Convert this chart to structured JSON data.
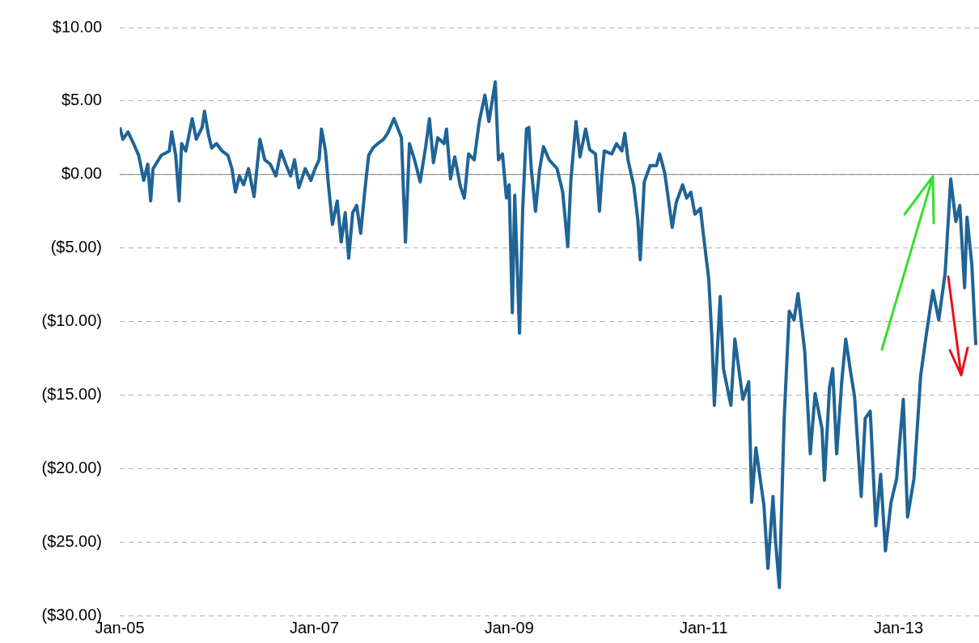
{
  "chart_data": {
    "type": "line",
    "color": "#1f6496",
    "marker": "none",
    "grid": "y",
    "xlim": [
      "2005-01-01",
      "2013-10-30"
    ],
    "xticks": [
      {
        "value": "2005-01-01",
        "label": "Jan-05"
      },
      {
        "value": "2007-01-01",
        "label": "Jan-07"
      },
      {
        "value": "2009-01-01",
        "label": "Jan-09"
      },
      {
        "value": "2011-01-01",
        "label": "Jan-11"
      },
      {
        "value": "2013-01-01",
        "label": "Jan-13"
      }
    ],
    "ylim": [
      -30,
      10
    ],
    "yticks": [
      {
        "value": -30,
        "label": "($30.00)"
      },
      {
        "value": -25,
        "label": "($25.00)"
      },
      {
        "value": -20,
        "label": "($20.00)"
      },
      {
        "value": -15,
        "label": "($15.00)"
      },
      {
        "value": -10,
        "label": "($10.00)"
      },
      {
        "value": -5,
        "label": "($5.00)"
      },
      {
        "value": 0,
        "label": "$0.00"
      },
      {
        "value": 5,
        "label": "$5.00"
      },
      {
        "value": 10,
        "label": "$10.00"
      }
    ],
    "ref_lines": [
      {
        "axis": "y",
        "value": 0,
        "color": "#808080"
      }
    ],
    "x": [
      "2005-01-01",
      "2005-01-13",
      "2005-02-01",
      "2005-02-22",
      "2005-03-13",
      "2005-04-01",
      "2005-04-16",
      "2005-04-27",
      "2005-05-06",
      "2005-06-06",
      "2005-07-06",
      "2005-07-15",
      "2005-07-30",
      "2005-08-12",
      "2005-08-21",
      "2005-09-06",
      "2005-09-30",
      "2005-10-15",
      "2005-11-06",
      "2005-11-15",
      "2005-11-30",
      "2005-12-12",
      "2005-12-30",
      "2006-01-20",
      "2006-02-11",
      "2006-02-26",
      "2006-03-11",
      "2006-03-26",
      "2006-04-11",
      "2006-04-29",
      "2006-05-20",
      "2006-06-11",
      "2006-06-29",
      "2006-07-20",
      "2006-08-10",
      "2006-08-29",
      "2006-09-16",
      "2006-10-04",
      "2006-10-19",
      "2006-11-04",
      "2006-11-28",
      "2006-12-19",
      "2007-01-04",
      "2007-01-19",
      "2007-01-28",
      "2007-02-12",
      "2007-02-23",
      "2007-03-10",
      "2007-03-28",
      "2007-04-12",
      "2007-04-27",
      "2007-05-10",
      "2007-05-25",
      "2007-06-09",
      "2007-06-24",
      "2007-07-09",
      "2007-07-24",
      "2007-08-09",
      "2007-08-27",
      "2007-09-18",
      "2007-10-03",
      "2007-10-27",
      "2007-11-24",
      "2007-12-09",
      "2007-12-24",
      "2008-01-12",
      "2008-02-02",
      "2008-02-23",
      "2008-03-08",
      "2008-03-23",
      "2008-04-08",
      "2008-05-02",
      "2008-05-11",
      "2008-05-26",
      "2008-06-11",
      "2008-07-02",
      "2008-07-17",
      "2008-08-02",
      "2008-08-23",
      "2008-09-11",
      "2008-10-02",
      "2008-10-17",
      "2008-11-10",
      "2008-11-22",
      "2008-12-07",
      "2008-12-22",
      "2009-01-01",
      "2009-01-13",
      "2009-01-22",
      "2009-02-09",
      "2009-02-21",
      "2009-03-07",
      "2009-03-16",
      "2009-03-25",
      "2009-04-10",
      "2009-04-25",
      "2009-05-10",
      "2009-05-31",
      "2009-06-30",
      "2009-07-21",
      "2009-08-09",
      "2009-08-21",
      "2009-09-09",
      "2009-09-24",
      "2009-10-15",
      "2009-10-30",
      "2009-11-21",
      "2009-12-06",
      "2009-12-15",
      "2009-12-24",
      "2010-01-21",
      "2010-02-08",
      "2010-02-28",
      "2010-03-11",
      "2010-03-23",
      "2010-04-14",
      "2010-04-29",
      "2010-05-08",
      "2010-05-23",
      "2010-06-14",
      "2010-07-08",
      "2010-07-20",
      "2010-08-08",
      "2010-09-05",
      "2010-09-20",
      "2010-10-14",
      "2010-10-29",
      "2010-11-14",
      "2010-11-29",
      "2010-12-20",
      "2010-12-29",
      "2011-01-20",
      "2011-02-01",
      "2011-02-10",
      "2011-03-04",
      "2011-03-16",
      "2011-04-13",
      "2011-04-28",
      "2011-05-28",
      "2011-06-19",
      "2011-06-30",
      "2011-07-16",
      "2011-08-15",
      "2011-08-30",
      "2011-09-18",
      "2011-09-27",
      "2011-10-12",
      "2011-10-30",
      "2011-11-18",
      "2011-12-06",
      "2011-12-21",
      "2012-01-15",
      "2012-02-05",
      "2012-02-23",
      "2012-03-20",
      "2012-03-29",
      "2012-04-17",
      "2012-04-29",
      "2012-05-14",
      "2012-06-02",
      "2012-06-17",
      "2012-07-05",
      "2012-07-20",
      "2012-08-14",
      "2012-08-29",
      "2012-09-17",
      "2012-10-08",
      "2012-10-26",
      "2012-11-13",
      "2012-12-04",
      "2012-12-25",
      "2013-01-19",
      "2013-02-04",
      "2013-02-28",
      "2013-03-25",
      "2013-04-16",
      "2013-05-10",
      "2013-06-01",
      "2013-06-25",
      "2013-07-16",
      "2013-08-04",
      "2013-08-19",
      "2013-09-06",
      "2013-09-15",
      "2013-10-03",
      "2013-10-18"
    ],
    "values": [
      3.2,
      2.4,
      2.9,
      2.1,
      1.3,
      -0.4,
      0.7,
      -1.8,
      0.4,
      1.3,
      1.6,
      2.9,
      1.3,
      -1.8,
      2.1,
      1.6,
      3.8,
      2.4,
      3.2,
      4.3,
      2.7,
      1.8,
      2.1,
      1.6,
      1.3,
      0.4,
      -1.2,
      -0.1,
      -0.7,
      0.4,
      -1.5,
      2.4,
      1.0,
      0.7,
      -0.1,
      1.6,
      0.7,
      -0.1,
      1.0,
      -0.9,
      0.4,
      -0.4,
      0.4,
      1.0,
      3.1,
      1.6,
      -0.7,
      -3.4,
      -1.8,
      -4.6,
      -2.6,
      -5.7,
      -2.6,
      -2.1,
      -4.0,
      -1.2,
      1.3,
      1.8,
      2.1,
      2.4,
      2.8,
      3.8,
      2.5,
      -4.6,
      2.1,
      1.0,
      -0.5,
      1.9,
      3.8,
      0.8,
      2.5,
      2.1,
      3.1,
      -0.3,
      1.2,
      -0.8,
      -1.6,
      1.4,
      1.0,
      3.6,
      5.4,
      3.6,
      6.3,
      1.0,
      1.4,
      -1.6,
      -0.7,
      -9.4,
      -1.4,
      -10.8,
      -2.3,
      3.1,
      3.2,
      0.4,
      -2.5,
      0.3,
      1.9,
      1.0,
      0.4,
      -1.2,
      -4.9,
      -0.3,
      3.6,
      1.2,
      3.1,
      1.7,
      1.4,
      -2.5,
      -0.1,
      1.6,
      1.4,
      2.1,
      1.6,
      2.8,
      1.0,
      -0.8,
      -3.1,
      -5.8,
      -0.5,
      0.6,
      0.6,
      1.4,
      0.1,
      -3.6,
      -1.9,
      -0.7,
      -1.6,
      -1.2,
      -2.7,
      -2.3,
      -3.8,
      -7.1,
      -11.2,
      -15.7,
      -8.3,
      -13.2,
      -15.7,
      -11.2,
      -15.3,
      -14.1,
      -22.3,
      -18.6,
      -22.5,
      -26.8,
      -21.9,
      -24.8,
      -28.1,
      -16.6,
      -9.3,
      -9.9,
      -8.1,
      -12.0,
      -19.0,
      -14.9,
      -17.3,
      -20.8,
      -14.5,
      -13.2,
      -19.0,
      -14.1,
      -11.2,
      -13.4,
      -15.1,
      -21.9,
      -16.6,
      -16.1,
      -23.9,
      -20.4,
      -25.6,
      -22.3,
      -20.7,
      -15.3,
      -23.3,
      -20.7,
      -13.7,
      -10.8,
      -7.9,
      -9.9,
      -6.7,
      -0.3,
      -3.2,
      -2.1,
      -7.7,
      -2.9,
      -6.1,
      -11.6
    ]
  }
}
